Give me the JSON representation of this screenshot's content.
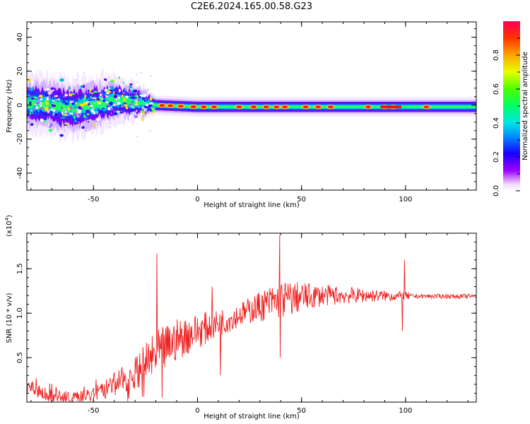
{
  "figure": {
    "title": "C2E6.2024.165.00.58.G23"
  },
  "chart_data": [
    {
      "type": "heatmap",
      "xlabel": "Height of straight line (km)",
      "ylabel": "Frequency (Hz)",
      "xlim": [
        -82,
        134
      ],
      "ylim": [
        -50,
        49
      ],
      "xticks": [
        -50,
        0,
        50,
        100
      ],
      "yticks": [
        -40,
        -20,
        0,
        20,
        40
      ],
      "colorbar": {
        "label": "Normalized spectral amplitude",
        "range": [
          0,
          1
        ],
        "ticks": [
          0.0,
          0.2,
          0.4,
          0.6,
          0.8
        ],
        "colormap": "rainbow (white-violet-blue-cyan-green-yellow-orange-red)"
      },
      "ridge_center_hz": [
        {
          "x": -80,
          "y": 1
        },
        {
          "x": -70,
          "y": 0
        },
        {
          "x": -60,
          "y": -2
        },
        {
          "x": -50,
          "y": 0
        },
        {
          "x": -40,
          "y": 3
        },
        {
          "x": -30,
          "y": 2
        },
        {
          "x": -20,
          "y": 0
        },
        {
          "x": 0,
          "y": -1
        },
        {
          "x": 50,
          "y": -1
        },
        {
          "x": 100,
          "y": -1
        },
        {
          "x": 134,
          "y": -1
        }
      ],
      "ridge_halfwidth_hz": [
        {
          "x": -80,
          "y": 9
        },
        {
          "x": -50,
          "y": 9
        },
        {
          "x": -25,
          "y": 5
        },
        {
          "x": -20,
          "y": 3
        },
        {
          "x": 134,
          "y": 3
        }
      ],
      "hotspots_x_km": [
        -17,
        -13,
        -8,
        -2,
        3,
        8,
        20,
        27,
        33,
        38,
        42,
        52,
        58,
        64,
        82,
        90,
        94,
        110
      ]
    },
    {
      "type": "line",
      "xlabel": "Height of straight line (km)",
      "ylabel": "SNR (10 * v/v)",
      "scale_label": "(x10",
      "scale_exponent": "4",
      "xlim": [
        -82,
        134
      ],
      "ylim": [
        0,
        1.9
      ],
      "xticks": [
        -50,
        0,
        50,
        100
      ],
      "yticks": [
        0.5,
        1.0,
        1.5
      ],
      "color": "#ee2222",
      "series": [
        {
          "baseline": [
            {
              "x": -82,
              "y": 0.18
            },
            {
              "x": -75,
              "y": 0.1
            },
            {
              "x": -70,
              "y": 0.06
            },
            {
              "x": -60,
              "y": 0.05
            },
            {
              "x": -50,
              "y": 0.1
            },
            {
              "x": -40,
              "y": 0.2
            },
            {
              "x": -30,
              "y": 0.33
            },
            {
              "x": -20,
              "y": 0.52
            },
            {
              "x": -10,
              "y": 0.7
            },
            {
              "x": 0,
              "y": 0.8
            },
            {
              "x": 10,
              "y": 0.88
            },
            {
              "x": 20,
              "y": 0.98
            },
            {
              "x": 30,
              "y": 1.08
            },
            {
              "x": 40,
              "y": 1.15
            },
            {
              "x": 50,
              "y": 1.18
            },
            {
              "x": 60,
              "y": 1.2
            },
            {
              "x": 80,
              "y": 1.2
            },
            {
              "x": 100,
              "y": 1.19
            },
            {
              "x": 134,
              "y": 1.19
            }
          ],
          "noise_amplitude": [
            {
              "x": -82,
              "y": 0.08
            },
            {
              "x": -50,
              "y": 0.07
            },
            {
              "x": -30,
              "y": 0.18
            },
            {
              "x": -20,
              "y": 0.28
            },
            {
              "x": 0,
              "y": 0.2
            },
            {
              "x": 20,
              "y": 0.13
            },
            {
              "x": 40,
              "y": 0.22
            },
            {
              "x": 60,
              "y": 0.12
            },
            {
              "x": 90,
              "y": 0.06
            },
            {
              "x": 101,
              "y": 0.05
            },
            {
              "x": 103,
              "y": 0.025
            },
            {
              "x": 134,
              "y": 0.025
            }
          ],
          "spikes": [
            {
              "x": -19.5,
              "y": 1.67
            },
            {
              "x": -17,
              "y": 0.05
            },
            {
              "x": -2,
              "y": 0.72
            },
            {
              "x": 7,
              "y": 1.3
            },
            {
              "x": 11,
              "y": 0.3
            },
            {
              "x": 39.5,
              "y": 1.88
            },
            {
              "x": 39.8,
              "y": 0.5
            },
            {
              "x": 98.5,
              "y": 0.8
            },
            {
              "x": 99.5,
              "y": 1.6
            }
          ]
        }
      ]
    }
  ]
}
